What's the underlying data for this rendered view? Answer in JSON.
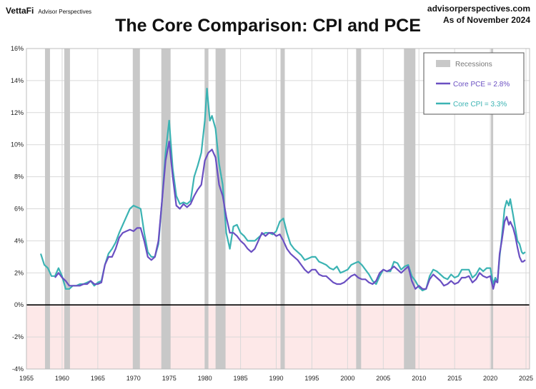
{
  "header": {
    "brand": "VettaFi",
    "brand_sub": "Advisor Perspectives",
    "site": "advisorperspectives.com",
    "asof": "As of November 2024"
  },
  "colors": {
    "pce": "#6a4fc2",
    "cpi": "#3bb3b3",
    "recession": "#c8c8c8",
    "negative_zone": "#fde8e8",
    "zero_line": "#000000"
  },
  "chart_data": {
    "type": "line",
    "title": "The Core Comparison: CPI and PCE",
    "xlim": [
      1955,
      2025.5
    ],
    "ylim": [
      -4,
      16
    ],
    "x_ticks": [
      1955,
      1960,
      1965,
      1970,
      1975,
      1980,
      1985,
      1990,
      1995,
      2000,
      2005,
      2010,
      2015,
      2020,
      2025
    ],
    "y_ticks": [
      16,
      14,
      12,
      10,
      8,
      6,
      4,
      2,
      0,
      -2,
      -4
    ],
    "y_tick_labels": [
      "16%",
      "14%",
      "12%",
      "10%",
      "8%",
      "6%",
      "4%",
      "2%",
      "0%",
      "-2%",
      "-4%"
    ],
    "grid": true,
    "negative_region_shaded": true,
    "legend_position": "top-right",
    "recessions": [
      [
        1957.6,
        1958.3
      ],
      [
        1960.3,
        1961.1
      ],
      [
        1969.9,
        1970.9
      ],
      [
        1973.9,
        1975.2
      ],
      [
        1980.0,
        1980.5
      ],
      [
        1981.5,
        1982.9
      ],
      [
        1990.6,
        1991.2
      ],
      [
        2001.2,
        2001.9
      ],
      [
        2007.9,
        2009.5
      ],
      [
        2020.1,
        2020.4
      ]
    ],
    "legend": {
      "recessions": "Recessions",
      "pce": "Core PCE = 2.8%",
      "cpi": "Core CPI =  3.3%"
    },
    "series": [
      {
        "name": "Core CPI =  3.3%",
        "key": "cpi",
        "points": [
          [
            1957.0,
            3.2
          ],
          [
            1957.5,
            2.5
          ],
          [
            1958.0,
            2.3
          ],
          [
            1958.5,
            1.8
          ],
          [
            1959.0,
            1.8
          ],
          [
            1959.5,
            2.3
          ],
          [
            1960.0,
            1.8
          ],
          [
            1960.5,
            1.0
          ],
          [
            1961.0,
            1.0
          ],
          [
            1961.5,
            1.2
          ],
          [
            1962.0,
            1.2
          ],
          [
            1962.5,
            1.3
          ],
          [
            1963.0,
            1.3
          ],
          [
            1963.5,
            1.4
          ],
          [
            1964.0,
            1.5
          ],
          [
            1964.5,
            1.2
          ],
          [
            1965.0,
            1.4
          ],
          [
            1965.5,
            1.5
          ],
          [
            1966.0,
            2.5
          ],
          [
            1966.5,
            3.2
          ],
          [
            1967.0,
            3.5
          ],
          [
            1967.5,
            3.9
          ],
          [
            1968.0,
            4.5
          ],
          [
            1968.5,
            5.0
          ],
          [
            1969.0,
            5.5
          ],
          [
            1969.5,
            6.0
          ],
          [
            1970.0,
            6.2
          ],
          [
            1970.5,
            6.1
          ],
          [
            1971.0,
            6.0
          ],
          [
            1971.5,
            4.5
          ],
          [
            1972.0,
            3.3
          ],
          [
            1972.5,
            3.0
          ],
          [
            1973.0,
            3.0
          ],
          [
            1973.5,
            3.8
          ],
          [
            1974.0,
            6.5
          ],
          [
            1974.5,
            9.5
          ],
          [
            1975.0,
            11.5
          ],
          [
            1975.5,
            8.5
          ],
          [
            1976.0,
            6.8
          ],
          [
            1976.5,
            6.3
          ],
          [
            1977.0,
            6.4
          ],
          [
            1977.5,
            6.3
          ],
          [
            1978.0,
            6.5
          ],
          [
            1978.5,
            8.0
          ],
          [
            1979.0,
            8.7
          ],
          [
            1979.5,
            9.5
          ],
          [
            1980.0,
            11.5
          ],
          [
            1980.3,
            13.5
          ],
          [
            1980.7,
            11.5
          ],
          [
            1981.0,
            11.8
          ],
          [
            1981.5,
            11.0
          ],
          [
            1982.0,
            8.8
          ],
          [
            1982.5,
            7.5
          ],
          [
            1983.0,
            4.5
          ],
          [
            1983.5,
            3.5
          ],
          [
            1984.0,
            4.9
          ],
          [
            1984.5,
            5.0
          ],
          [
            1985.0,
            4.5
          ],
          [
            1985.5,
            4.3
          ],
          [
            1986.0,
            4.0
          ],
          [
            1986.5,
            4.0
          ],
          [
            1987.0,
            4.0
          ],
          [
            1987.5,
            4.2
          ],
          [
            1988.0,
            4.4
          ],
          [
            1988.5,
            4.5
          ],
          [
            1989.0,
            4.5
          ],
          [
            1989.5,
            4.4
          ],
          [
            1990.0,
            4.6
          ],
          [
            1990.5,
            5.2
          ],
          [
            1991.0,
            5.4
          ],
          [
            1991.5,
            4.5
          ],
          [
            1992.0,
            3.8
          ],
          [
            1992.5,
            3.5
          ],
          [
            1993.0,
            3.3
          ],
          [
            1993.5,
            3.1
          ],
          [
            1994.0,
            2.8
          ],
          [
            1994.5,
            2.9
          ],
          [
            1995.0,
            3.0
          ],
          [
            1995.5,
            3.0
          ],
          [
            1996.0,
            2.7
          ],
          [
            1996.5,
            2.6
          ],
          [
            1997.0,
            2.5
          ],
          [
            1997.5,
            2.3
          ],
          [
            1998.0,
            2.2
          ],
          [
            1998.5,
            2.4
          ],
          [
            1999.0,
            2.0
          ],
          [
            1999.5,
            2.1
          ],
          [
            2000.0,
            2.2
          ],
          [
            2000.5,
            2.5
          ],
          [
            2001.0,
            2.6
          ],
          [
            2001.5,
            2.7
          ],
          [
            2002.0,
            2.5
          ],
          [
            2002.5,
            2.2
          ],
          [
            2003.0,
            1.9
          ],
          [
            2003.5,
            1.5
          ],
          [
            2004.0,
            1.3
          ],
          [
            2004.5,
            1.8
          ],
          [
            2005.0,
            2.2
          ],
          [
            2005.5,
            2.1
          ],
          [
            2006.0,
            2.1
          ],
          [
            2006.5,
            2.7
          ],
          [
            2007.0,
            2.6
          ],
          [
            2007.5,
            2.2
          ],
          [
            2008.0,
            2.4
          ],
          [
            2008.5,
            2.5
          ],
          [
            2009.0,
            1.8
          ],
          [
            2009.5,
            1.5
          ],
          [
            2010.0,
            1.1
          ],
          [
            2010.5,
            0.9
          ],
          [
            2011.0,
            1.0
          ],
          [
            2011.5,
            1.8
          ],
          [
            2012.0,
            2.2
          ],
          [
            2012.5,
            2.1
          ],
          [
            2013.0,
            1.9
          ],
          [
            2013.5,
            1.7
          ],
          [
            2014.0,
            1.6
          ],
          [
            2014.5,
            1.9
          ],
          [
            2015.0,
            1.7
          ],
          [
            2015.5,
            1.8
          ],
          [
            2016.0,
            2.2
          ],
          [
            2016.5,
            2.2
          ],
          [
            2017.0,
            2.2
          ],
          [
            2017.5,
            1.7
          ],
          [
            2018.0,
            1.9
          ],
          [
            2018.5,
            2.3
          ],
          [
            2019.0,
            2.1
          ],
          [
            2019.5,
            2.3
          ],
          [
            2020.0,
            2.3
          ],
          [
            2020.4,
            1.3
          ],
          [
            2020.7,
            1.7
          ],
          [
            2021.0,
            1.4
          ],
          [
            2021.3,
            3.0
          ],
          [
            2021.6,
            4.2
          ],
          [
            2022.0,
            6.0
          ],
          [
            2022.3,
            6.5
          ],
          [
            2022.6,
            6.2
          ],
          [
            2022.8,
            6.6
          ],
          [
            2023.2,
            5.6
          ],
          [
            2023.5,
            4.8
          ],
          [
            2023.8,
            4.0
          ],
          [
            2024.1,
            3.8
          ],
          [
            2024.4,
            3.3
          ],
          [
            2024.6,
            3.2
          ],
          [
            2024.9,
            3.3
          ]
        ]
      },
      {
        "name": "Core PCE = 2.8%",
        "key": "pce",
        "points": [
          [
            1959.0,
            1.7
          ],
          [
            1959.5,
            2.0
          ],
          [
            1960.0,
            1.7
          ],
          [
            1960.5,
            1.5
          ],
          [
            1961.0,
            1.2
          ],
          [
            1961.5,
            1.2
          ],
          [
            1962.0,
            1.2
          ],
          [
            1962.5,
            1.2
          ],
          [
            1963.0,
            1.3
          ],
          [
            1963.5,
            1.3
          ],
          [
            1964.0,
            1.5
          ],
          [
            1964.5,
            1.3
          ],
          [
            1965.0,
            1.3
          ],
          [
            1965.5,
            1.4
          ],
          [
            1966.0,
            2.5
          ],
          [
            1966.5,
            3.0
          ],
          [
            1967.0,
            3.0
          ],
          [
            1967.5,
            3.5
          ],
          [
            1968.0,
            4.2
          ],
          [
            1968.5,
            4.5
          ],
          [
            1969.0,
            4.6
          ],
          [
            1969.5,
            4.7
          ],
          [
            1970.0,
            4.6
          ],
          [
            1970.5,
            4.8
          ],
          [
            1971.0,
            4.8
          ],
          [
            1971.5,
            4.0
          ],
          [
            1972.0,
            3.0
          ],
          [
            1972.5,
            2.8
          ],
          [
            1973.0,
            3.0
          ],
          [
            1973.5,
            4.0
          ],
          [
            1974.0,
            6.5
          ],
          [
            1974.5,
            9.0
          ],
          [
            1975.0,
            10.2
          ],
          [
            1975.5,
            8.0
          ],
          [
            1976.0,
            6.2
          ],
          [
            1976.5,
            6.0
          ],
          [
            1977.0,
            6.3
          ],
          [
            1977.5,
            6.1
          ],
          [
            1978.0,
            6.3
          ],
          [
            1978.5,
            6.8
          ],
          [
            1979.0,
            7.2
          ],
          [
            1979.5,
            7.5
          ],
          [
            1980.0,
            9.0
          ],
          [
            1980.5,
            9.5
          ],
          [
            1981.0,
            9.7
          ],
          [
            1981.5,
            9.2
          ],
          [
            1982.0,
            7.5
          ],
          [
            1982.5,
            6.8
          ],
          [
            1983.0,
            5.5
          ],
          [
            1983.5,
            4.5
          ],
          [
            1984.0,
            4.5
          ],
          [
            1984.5,
            4.3
          ],
          [
            1985.0,
            4.0
          ],
          [
            1985.5,
            3.8
          ],
          [
            1986.0,
            3.5
          ],
          [
            1986.5,
            3.3
          ],
          [
            1987.0,
            3.5
          ],
          [
            1987.5,
            4.0
          ],
          [
            1988.0,
            4.5
          ],
          [
            1988.5,
            4.3
          ],
          [
            1989.0,
            4.5
          ],
          [
            1989.5,
            4.5
          ],
          [
            1990.0,
            4.3
          ],
          [
            1990.5,
            4.4
          ],
          [
            1991.0,
            4.0
          ],
          [
            1991.5,
            3.5
          ],
          [
            1992.0,
            3.2
          ],
          [
            1992.5,
            3.0
          ],
          [
            1993.0,
            2.8
          ],
          [
            1993.5,
            2.5
          ],
          [
            1994.0,
            2.2
          ],
          [
            1994.5,
            2.0
          ],
          [
            1995.0,
            2.2
          ],
          [
            1995.5,
            2.2
          ],
          [
            1996.0,
            1.9
          ],
          [
            1996.5,
            1.8
          ],
          [
            1997.0,
            1.8
          ],
          [
            1997.5,
            1.6
          ],
          [
            1998.0,
            1.4
          ],
          [
            1998.5,
            1.3
          ],
          [
            1999.0,
            1.3
          ],
          [
            1999.5,
            1.4
          ],
          [
            2000.0,
            1.6
          ],
          [
            2000.5,
            1.8
          ],
          [
            2001.0,
            1.9
          ],
          [
            2001.5,
            1.7
          ],
          [
            2002.0,
            1.6
          ],
          [
            2002.5,
            1.6
          ],
          [
            2003.0,
            1.4
          ],
          [
            2003.5,
            1.3
          ],
          [
            2004.0,
            1.5
          ],
          [
            2004.5,
            2.0
          ],
          [
            2005.0,
            2.2
          ],
          [
            2005.5,
            2.1
          ],
          [
            2006.0,
            2.2
          ],
          [
            2006.5,
            2.4
          ],
          [
            2007.0,
            2.2
          ],
          [
            2007.5,
            2.0
          ],
          [
            2008.0,
            2.2
          ],
          [
            2008.5,
            2.4
          ],
          [
            2009.0,
            1.5
          ],
          [
            2009.5,
            1.0
          ],
          [
            2010.0,
            1.2
          ],
          [
            2010.5,
            1.0
          ],
          [
            2011.0,
            1.0
          ],
          [
            2011.5,
            1.6
          ],
          [
            2012.0,
            1.9
          ],
          [
            2012.5,
            1.7
          ],
          [
            2013.0,
            1.5
          ],
          [
            2013.5,
            1.2
          ],
          [
            2014.0,
            1.3
          ],
          [
            2014.5,
            1.5
          ],
          [
            2015.0,
            1.3
          ],
          [
            2015.5,
            1.4
          ],
          [
            2016.0,
            1.7
          ],
          [
            2016.5,
            1.7
          ],
          [
            2017.0,
            1.8
          ],
          [
            2017.5,
            1.4
          ],
          [
            2018.0,
            1.6
          ],
          [
            2018.5,
            2.0
          ],
          [
            2019.0,
            1.8
          ],
          [
            2019.5,
            1.7
          ],
          [
            2020.0,
            1.8
          ],
          [
            2020.4,
            1.0
          ],
          [
            2020.7,
            1.5
          ],
          [
            2021.0,
            1.4
          ],
          [
            2021.3,
            3.2
          ],
          [
            2021.6,
            4.0
          ],
          [
            2022.0,
            5.2
          ],
          [
            2022.3,
            5.5
          ],
          [
            2022.6,
            5.0
          ],
          [
            2022.8,
            5.2
          ],
          [
            2023.2,
            4.8
          ],
          [
            2023.5,
            4.3
          ],
          [
            2023.8,
            3.6
          ],
          [
            2024.1,
            3.0
          ],
          [
            2024.4,
            2.7
          ],
          [
            2024.6,
            2.7
          ],
          [
            2024.9,
            2.8
          ]
        ]
      }
    ]
  }
}
